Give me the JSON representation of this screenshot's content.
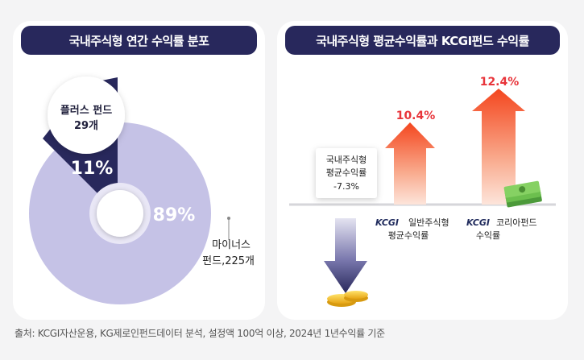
{
  "left": {
    "title": "국내주식형 연간 수익률 분포",
    "callout": {
      "line1": "플러스 펀드",
      "line2": "29개"
    },
    "pct_plus": "11%",
    "pct_minus": "89%",
    "minus_label": {
      "line1": "마이너스",
      "line2": "펀드,225개"
    }
  },
  "right": {
    "title": "국내주식형 평균수익률과 KCGI펀드 수익률",
    "avg_box": {
      "line1": "국내주식형",
      "line2": "평균수익률",
      "line3": "-7.3%"
    },
    "bar1": {
      "value_label": "10.4%",
      "brand": "KCGI",
      "line1": "일반주식형",
      "line2": "평균수익률"
    },
    "bar2": {
      "value_label": "12.4%",
      "brand": "KCGI",
      "line1": "코리아펀드",
      "line2": "수익률"
    }
  },
  "footnote": "출처: KCGI자산운용, KG제로인펀드데이터 분석, 설정액 100억 이상, 2024년 1년수익률 기준",
  "colors": {
    "title_bg": "#28285c",
    "donut_main": "#c5c2e6",
    "donut_slice": "#28285c",
    "arrow_up": "#f5542a",
    "arrow_down": "#2f2d66",
    "value_red": "#e8343a"
  },
  "chart_data": [
    {
      "type": "pie",
      "title": "국내주식형 연간 수익률 분포",
      "categories": [
        "플러스 펀드",
        "마이너스 펀드"
      ],
      "values": [
        29,
        225
      ],
      "percents": [
        11,
        89
      ]
    },
    {
      "type": "bar",
      "title": "국내주식형 평균수익률과 KCGI펀드 수익률",
      "categories": [
        "국내주식형 평균수익률",
        "KCGI 일반주식형 평균수익률",
        "KCGI 코리아펀드 수익률"
      ],
      "values": [
        -7.3,
        10.4,
        12.4
      ],
      "unit": "%"
    }
  ]
}
